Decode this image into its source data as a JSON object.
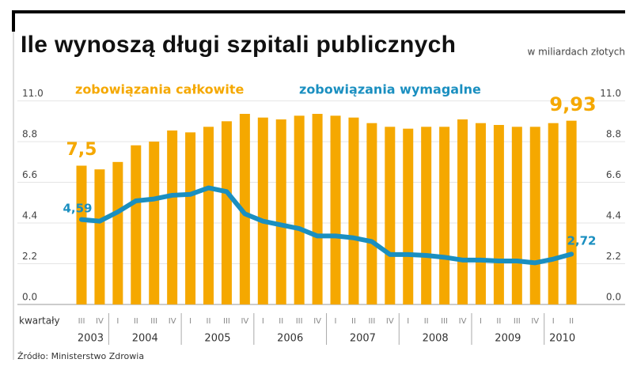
{
  "chart_data": {
    "type": "bar_line",
    "title": "Ile wynoszą długi szpitali publicznych",
    "subtitle": "w miliardach złotych",
    "x_label": "kwartały",
    "source": "Źródło: Ministerstwo Zdrowia",
    "categories": [
      "III",
      "IV",
      "I",
      "II",
      "III",
      "IV",
      "I",
      "II",
      "III",
      "IV",
      "I",
      "II",
      "III",
      "IV",
      "I",
      "II",
      "III",
      "IV",
      "I",
      "II",
      "III",
      "IV",
      "I",
      "II",
      "III",
      "IV",
      "I",
      "II"
    ],
    "years": [
      "2003",
      "2004",
      "2005",
      "2006",
      "2007",
      "2008",
      "2009",
      "2010"
    ],
    "ylim": [
      0,
      11
    ],
    "yticks": [
      {
        "value": 0,
        "label": "0.0"
      },
      2.2,
      4.4,
      6.6,
      8.8,
      {
        "value": 11,
        "label": "11.0"
      }
    ],
    "grid": true,
    "series": [
      {
        "name": "zobowiązania całkowite",
        "color": "#f5a800",
        "kind": "bar",
        "values": [
          7.5,
          7.3,
          7.7,
          8.6,
          8.8,
          9.4,
          9.3,
          9.6,
          9.9,
          10.3,
          10.1,
          10.0,
          10.2,
          10.3,
          10.2,
          10.1,
          9.8,
          9.6,
          9.5,
          9.6,
          9.6,
          10.0,
          9.8,
          9.7,
          9.6,
          9.6,
          9.8,
          9.93
        ],
        "value_labels": [
          "7,5",
          null,
          null,
          null,
          null,
          null,
          null,
          null,
          null,
          null,
          null,
          null,
          null,
          null,
          null,
          null,
          null,
          null,
          null,
          null,
          null,
          null,
          null,
          null,
          null,
          null,
          null,
          "9,93"
        ]
      },
      {
        "name": "zobowiązania wymagalne",
        "color": "#1a8fc0",
        "kind": "line",
        "values": [
          4.59,
          4.5,
          5.0,
          5.6,
          5.7,
          5.9,
          5.95,
          6.3,
          6.1,
          4.9,
          4.5,
          4.3,
          4.1,
          3.7,
          3.7,
          3.6,
          3.4,
          2.7,
          2.7,
          2.65,
          2.55,
          2.4,
          2.4,
          2.35,
          2.35,
          2.25,
          2.45,
          2.72
        ],
        "value_labels": [
          "4,59",
          null,
          null,
          null,
          null,
          null,
          null,
          null,
          null,
          null,
          null,
          null,
          null,
          null,
          null,
          null,
          null,
          null,
          null,
          null,
          null,
          null,
          null,
          null,
          null,
          null,
          null,
          "2,72"
        ]
      }
    ]
  }
}
